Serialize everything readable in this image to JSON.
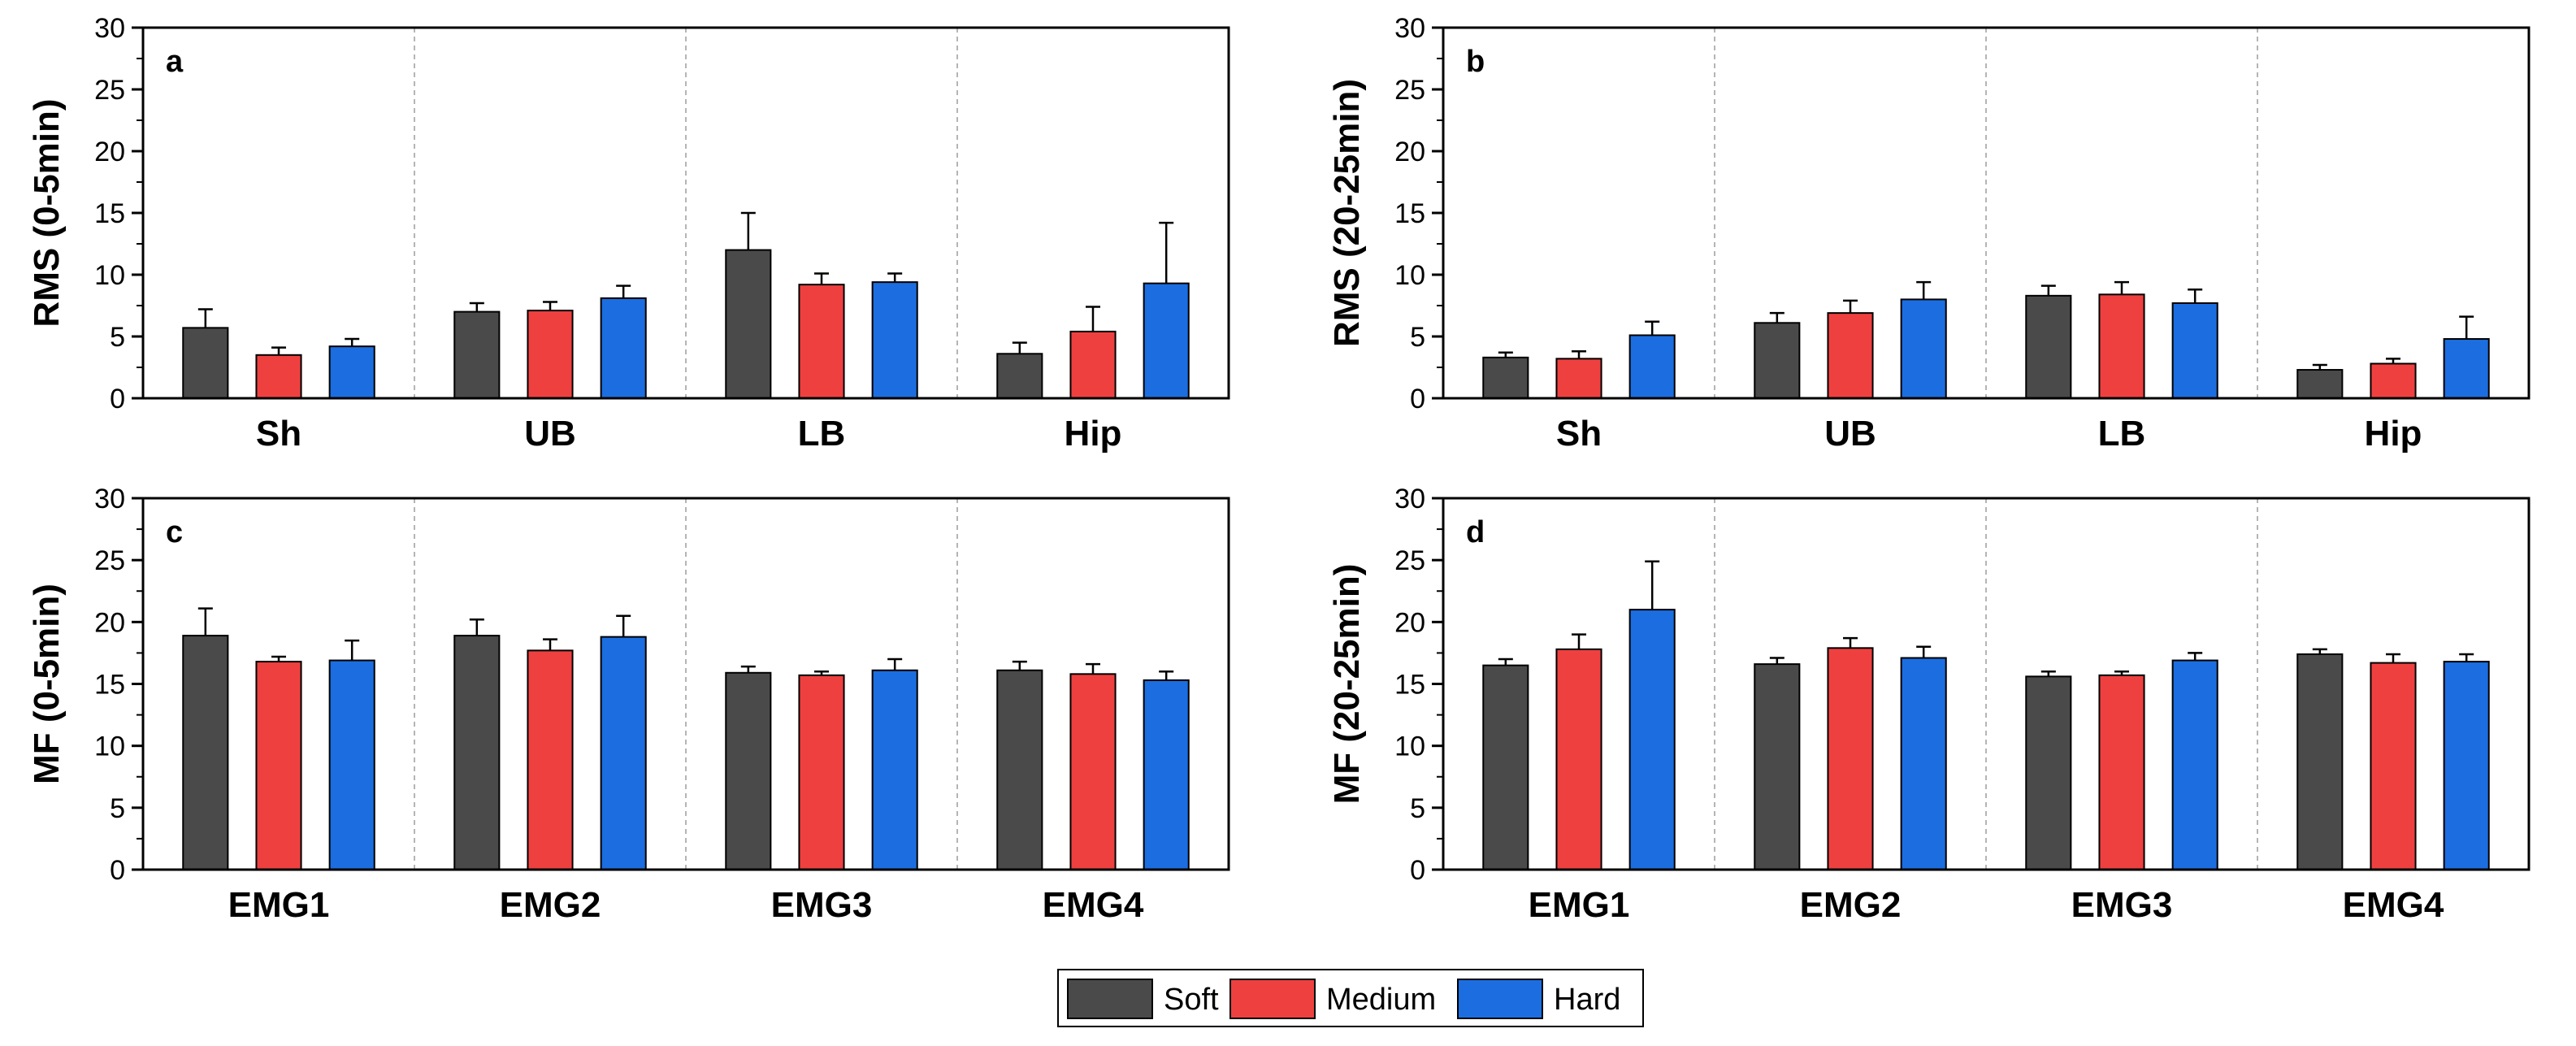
{
  "chart_data": [
    {
      "type": "bar",
      "panel_label": "a",
      "ylabel": "RMS (0-5min)",
      "ylim": [
        0,
        30
      ],
      "yticks": [
        "0",
        "5",
        "10",
        "15",
        "20",
        "25",
        "30"
      ],
      "categories": [
        "Sh",
        "UB",
        "LB",
        "Hip"
      ],
      "series": [
        {
          "name": "Soft",
          "values": [
            5.7,
            7.0,
            12.0,
            3.6
          ],
          "errors": [
            1.5,
            0.7,
            3.0,
            0.9
          ]
        },
        {
          "name": "Medium",
          "values": [
            3.5,
            7.1,
            9.2,
            5.4
          ],
          "errors": [
            0.6,
            0.7,
            0.9,
            2.0
          ]
        },
        {
          "name": "Hard",
          "values": [
            4.2,
            8.1,
            9.4,
            9.3
          ],
          "errors": [
            0.6,
            1.0,
            0.7,
            4.9
          ]
        }
      ]
    },
    {
      "type": "bar",
      "panel_label": "b",
      "ylabel": "RMS (20-25min)",
      "ylim": [
        0,
        30
      ],
      "yticks": [
        "0",
        "5",
        "10",
        "15",
        "20",
        "25",
        "30"
      ],
      "categories": [
        "Sh",
        "UB",
        "LB",
        "Hip"
      ],
      "series": [
        {
          "name": "Soft",
          "values": [
            3.3,
            6.1,
            8.3,
            2.3
          ],
          "errors": [
            0.4,
            0.8,
            0.8,
            0.4
          ]
        },
        {
          "name": "Medium",
          "values": [
            3.2,
            6.9,
            8.4,
            2.8
          ],
          "errors": [
            0.6,
            1.0,
            1.0,
            0.4
          ]
        },
        {
          "name": "Hard",
          "values": [
            5.1,
            8.0,
            7.7,
            4.8
          ],
          "errors": [
            1.1,
            1.4,
            1.1,
            1.8
          ]
        }
      ]
    },
    {
      "type": "bar",
      "panel_label": "c",
      "ylabel": "MF (0-5min)",
      "ylim": [
        0,
        30
      ],
      "yticks": [
        "0",
        "5",
        "10",
        "15",
        "20",
        "25",
        "30"
      ],
      "categories": [
        "EMG1",
        "EMG2",
        "EMG3",
        "EMG4"
      ],
      "series": [
        {
          "name": "Soft",
          "values": [
            18.9,
            18.9,
            15.9,
            16.1
          ],
          "errors": [
            2.2,
            1.3,
            0.5,
            0.7
          ]
        },
        {
          "name": "Medium",
          "values": [
            16.8,
            17.7,
            15.7,
            15.8
          ],
          "errors": [
            0.4,
            0.9,
            0.3,
            0.8
          ]
        },
        {
          "name": "Hard",
          "values": [
            16.9,
            18.8,
            16.1,
            15.3
          ],
          "errors": [
            1.6,
            1.7,
            0.9,
            0.7
          ]
        }
      ]
    },
    {
      "type": "bar",
      "panel_label": "d",
      "ylabel": "MF (20-25min)",
      "ylim": [
        0,
        30
      ],
      "yticks": [
        "0",
        "5",
        "10",
        "15",
        "20",
        "25",
        "30"
      ],
      "categories": [
        "EMG1",
        "EMG2",
        "EMG3",
        "EMG4"
      ],
      "series": [
        {
          "name": "Soft",
          "values": [
            16.5,
            16.6,
            15.6,
            17.4
          ],
          "errors": [
            0.5,
            0.5,
            0.4,
            0.4
          ]
        },
        {
          "name": "Medium",
          "values": [
            17.8,
            17.9,
            15.7,
            16.7
          ],
          "errors": [
            1.2,
            0.8,
            0.3,
            0.7
          ]
        },
        {
          "name": "Hard",
          "values": [
            21.0,
            17.1,
            16.9,
            16.8
          ],
          "errors": [
            3.9,
            0.9,
            0.6,
            0.6
          ]
        }
      ]
    }
  ],
  "legend": {
    "placement": "bottom-center",
    "items": [
      {
        "label": "Soft",
        "color": "#4a4a4a"
      },
      {
        "label": "Medium",
        "color": "#ef4040"
      },
      {
        "label": "Hard",
        "color": "#1c6ee0"
      }
    ]
  },
  "colors": {
    "Soft": "#4a4a4a",
    "Medium": "#ef4040",
    "Hard": "#1c6ee0"
  }
}
